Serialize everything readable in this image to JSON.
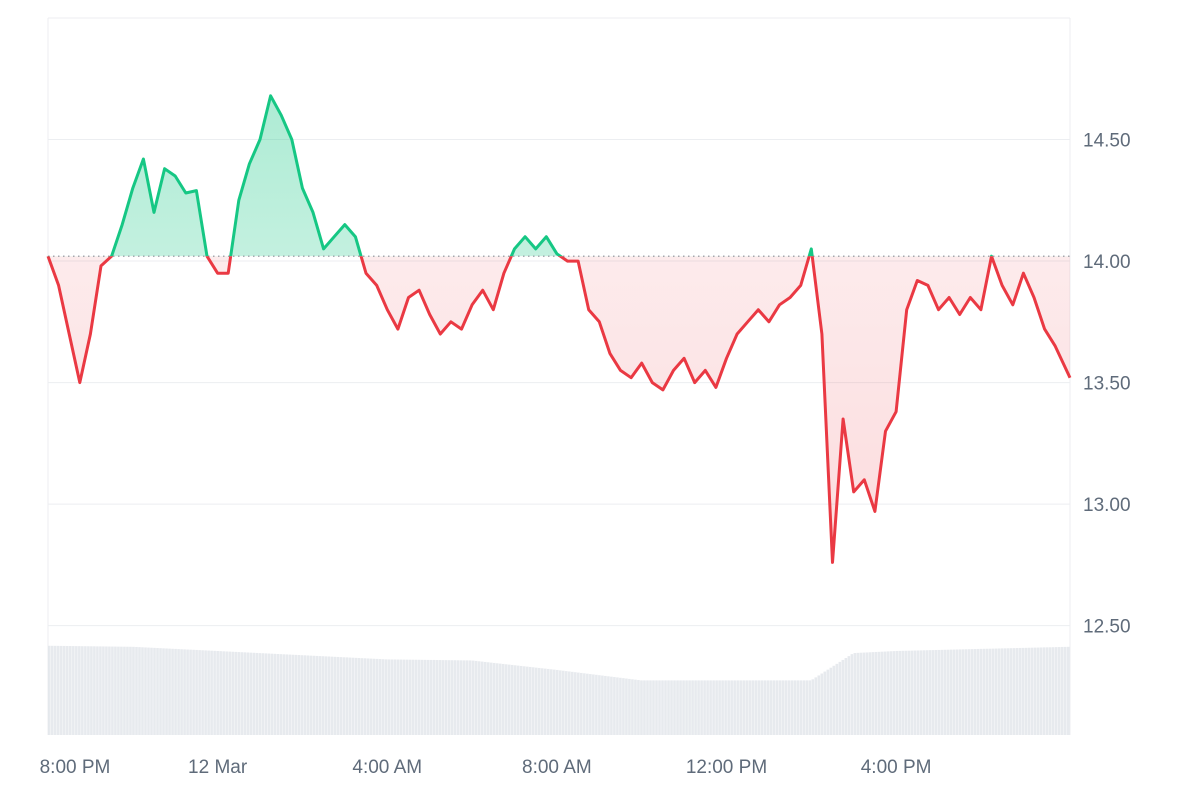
{
  "chart_data": {
    "type": "area",
    "baseline": 14.02,
    "ylim": [
      12.05,
      15.0
    ],
    "y_ticks": [
      "14.50",
      "14.00",
      "13.50",
      "13.00",
      "12.50"
    ],
    "y_tick_values": [
      14.5,
      14.0,
      13.5,
      13.0,
      12.5
    ],
    "x_ticks": [
      "8:00 PM",
      "12 Mar",
      "4:00 AM",
      "8:00 AM",
      "12:00 PM",
      "4:00 PM"
    ],
    "x_tick_hours": [
      0,
      4,
      8,
      12,
      16,
      20
    ],
    "x_range_hours": [
      0,
      24.1
    ],
    "grid": true,
    "colors": {
      "up": "#16c784",
      "down": "#ea3943",
      "up_fill": "#16c784",
      "down_fill": "#ea3943",
      "grid": "#eceef1",
      "volume": "#dfe3e8"
    },
    "price": {
      "x_hours": [
        0,
        0.25,
        0.5,
        0.75,
        1.0,
        1.25,
        1.5,
        1.75,
        2.0,
        2.25,
        2.5,
        2.75,
        3.0,
        3.25,
        3.5,
        3.75,
        4.0,
        4.25,
        4.5,
        4.75,
        5.0,
        5.25,
        5.5,
        5.75,
        6.0,
        6.25,
        6.5,
        6.75,
        7.0,
        7.25,
        7.5,
        7.75,
        8.0,
        8.25,
        8.5,
        8.75,
        9.0,
        9.25,
        9.5,
        9.75,
        10.0,
        10.25,
        10.5,
        10.75,
        11.0,
        11.25,
        11.5,
        11.75,
        12.0,
        12.25,
        12.5,
        12.75,
        13.0,
        13.25,
        13.5,
        13.75,
        14.0,
        14.25,
        14.5,
        14.75,
        15.0,
        15.25,
        15.5,
        15.75,
        16.0,
        16.25,
        16.5,
        16.75,
        17.0,
        17.25,
        17.5,
        17.75,
        18.0,
        18.25,
        18.5,
        18.75,
        19.0,
        19.25,
        19.5,
        19.75,
        20.0,
        20.25,
        20.5,
        20.75,
        21.0,
        21.25,
        21.5,
        21.75,
        22.0,
        22.25,
        22.5,
        22.75,
        23.0,
        23.25,
        23.5,
        23.75,
        24.1
      ],
      "values": [
        14.02,
        13.9,
        13.7,
        13.5,
        13.7,
        13.98,
        14.02,
        14.15,
        14.3,
        14.42,
        14.2,
        14.38,
        14.35,
        14.28,
        14.29,
        14.02,
        13.95,
        13.95,
        14.25,
        14.4,
        14.5,
        14.68,
        14.6,
        14.5,
        14.3,
        14.2,
        14.05,
        14.1,
        14.15,
        14.1,
        13.95,
        13.9,
        13.8,
        13.72,
        13.85,
        13.88,
        13.78,
        13.7,
        13.75,
        13.72,
        13.82,
        13.88,
        13.8,
        13.95,
        14.05,
        14.1,
        14.05,
        14.1,
        14.03,
        14.0,
        14.0,
        13.8,
        13.75,
        13.62,
        13.55,
        13.52,
        13.58,
        13.5,
        13.47,
        13.55,
        13.6,
        13.5,
        13.55,
        13.48,
        13.6,
        13.7,
        13.75,
        13.8,
        13.75,
        13.82,
        13.85,
        13.9,
        14.05,
        13.7,
        12.76,
        13.35,
        13.05,
        13.1,
        12.97,
        13.3,
        13.38,
        13.8,
        13.92,
        13.9,
        13.8,
        13.85,
        13.78,
        13.85,
        13.8,
        14.02,
        13.9,
        13.82,
        13.95,
        13.85,
        13.72,
        13.65,
        13.52
      ]
    },
    "volume": {
      "x_hours": [
        0,
        2,
        4,
        6,
        8,
        10,
        12,
        14,
        16,
        18,
        19,
        20,
        22,
        24.1
      ],
      "values": [
        0.85,
        0.84,
        0.8,
        0.76,
        0.72,
        0.71,
        0.62,
        0.52,
        0.52,
        0.52,
        0.78,
        0.8,
        0.82,
        0.84
      ]
    }
  }
}
